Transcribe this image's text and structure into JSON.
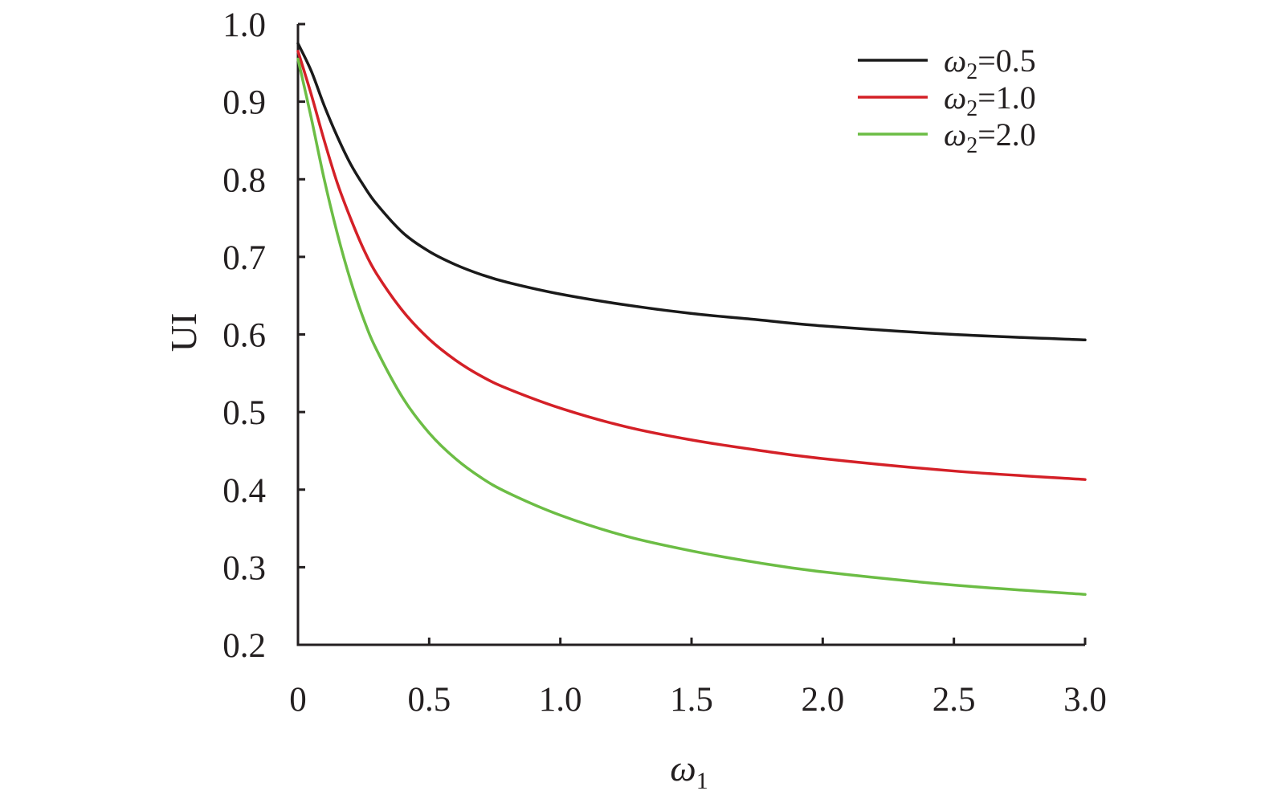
{
  "chart_data": {
    "type": "line",
    "title": "",
    "xlabel": "ω",
    "xlabel_sub": "1",
    "ylabel": "UI",
    "xlim": [
      0,
      3.0
    ],
    "ylim": [
      0.2,
      1.0
    ],
    "xticks": [
      {
        "value": 0,
        "label": "0"
      },
      {
        "value": 0.5,
        "label": "0.5"
      },
      {
        "value": 1.0,
        "label": "1.0"
      },
      {
        "value": 1.5,
        "label": "1.5"
      },
      {
        "value": 2.0,
        "label": "2.0"
      },
      {
        "value": 2.5,
        "label": "2.5"
      },
      {
        "value": 3.0,
        "label": "3.0"
      }
    ],
    "yticks": [
      {
        "value": 0.2,
        "label": "0.2"
      },
      {
        "value": 0.3,
        "label": "0.3"
      },
      {
        "value": 0.4,
        "label": "0.4"
      },
      {
        "value": 0.5,
        "label": "0.5"
      },
      {
        "value": 0.6,
        "label": "0.6"
      },
      {
        "value": 0.7,
        "label": "0.7"
      },
      {
        "value": 0.8,
        "label": "0.8"
      },
      {
        "value": 0.9,
        "label": "0.9"
      },
      {
        "value": 1.0,
        "label": "1.0"
      }
    ],
    "grid": false,
    "legend_position": "top-right",
    "x": [
      0,
      0.05,
      0.1,
      0.15,
      0.2,
      0.25,
      0.3,
      0.4,
      0.5,
      0.6,
      0.7,
      0.8,
      1.0,
      1.25,
      1.5,
      1.75,
      2.0,
      2.5,
      3.0
    ],
    "series": [
      {
        "name": "ω",
        "name_sub": "2",
        "name_suffix": "=0.5",
        "color": "#1a1a1a",
        "values": [
          0.975,
          0.94,
          0.895,
          0.855,
          0.82,
          0.792,
          0.768,
          0.731,
          0.707,
          0.69,
          0.677,
          0.667,
          0.652,
          0.638,
          0.627,
          0.619,
          0.611,
          0.6,
          0.593
        ]
      },
      {
        "name": "ω",
        "name_sub": "2",
        "name_suffix": "=1.0",
        "color": "#d42027",
        "values": [
          0.965,
          0.91,
          0.85,
          0.795,
          0.75,
          0.71,
          0.678,
          0.63,
          0.594,
          0.567,
          0.546,
          0.53,
          0.505,
          0.481,
          0.464,
          0.451,
          0.44,
          0.424,
          0.413
        ]
      },
      {
        "name": "ω",
        "name_sub": "2",
        "name_suffix": "=2.0",
        "color": "#6cbd45",
        "values": [
          0.955,
          0.88,
          0.8,
          0.73,
          0.67,
          0.62,
          0.58,
          0.518,
          0.473,
          0.44,
          0.415,
          0.396,
          0.367,
          0.34,
          0.321,
          0.306,
          0.294,
          0.277,
          0.265
        ]
      }
    ]
  }
}
